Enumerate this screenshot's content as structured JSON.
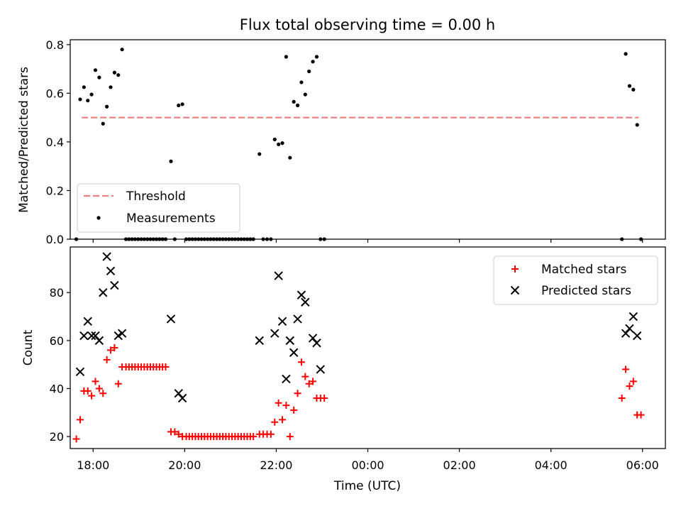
{
  "chart_data": [
    {
      "type": "scatter",
      "title": "Flux total observing time = 0.00 h",
      "xlabel": "",
      "ylabel": "Matched/Predicted stars",
      "xlim": [
        "17:30",
        "06:30"
      ],
      "ylim": [
        0,
        0.82
      ],
      "yticks": [
        0.0,
        0.2,
        0.4,
        0.6,
        0.8
      ],
      "yticklabels": [
        "0.0",
        "0.2",
        "0.4",
        "0.6",
        "0.8"
      ],
      "grid": false,
      "legend": "lower-left",
      "series": [
        {
          "name": "Threshold",
          "kind": "dashed-line",
          "color": "#f08080",
          "points": [
            [
              "17:45",
              0.5
            ],
            [
              "05:55",
              0.5
            ]
          ]
        },
        {
          "name": "Measurements",
          "kind": "dot",
          "color": "#000000",
          "points": [
            [
              "17:38",
              0.0
            ],
            [
              "17:43",
              0.575
            ],
            [
              "17:48",
              0.625
            ],
            [
              "17:53",
              0.57
            ],
            [
              "17:58",
              0.595
            ],
            [
              "18:03",
              0.695
            ],
            [
              "18:08",
              0.665
            ],
            [
              "18:13",
              0.475
            ],
            [
              "18:18",
              0.545
            ],
            [
              "18:23",
              0.625
            ],
            [
              "18:28",
              0.685
            ],
            [
              "18:33",
              0.675
            ],
            [
              "18:38",
              0.78
            ],
            [
              "18:43",
              0.0
            ],
            [
              "18:47",
              0.0
            ],
            [
              "18:51",
              0.0
            ],
            [
              "18:55",
              0.0
            ],
            [
              "18:59",
              0.0
            ],
            [
              "19:03",
              0.0
            ],
            [
              "19:07",
              0.0
            ],
            [
              "19:11",
              0.0
            ],
            [
              "19:15",
              0.0
            ],
            [
              "19:19",
              0.0
            ],
            [
              "19:23",
              0.0
            ],
            [
              "19:27",
              0.0
            ],
            [
              "19:31",
              0.0
            ],
            [
              "19:35",
              0.0
            ],
            [
              "19:42",
              0.32
            ],
            [
              "19:47",
              0.0
            ],
            [
              "19:52",
              0.55
            ],
            [
              "19:57",
              0.555
            ],
            [
              "20:02",
              0.0
            ],
            [
              "20:06",
              0.0
            ],
            [
              "20:10",
              0.0
            ],
            [
              "20:14",
              0.0
            ],
            [
              "20:18",
              0.0
            ],
            [
              "20:22",
              0.0
            ],
            [
              "20:26",
              0.0
            ],
            [
              "20:30",
              0.0
            ],
            [
              "20:34",
              0.0
            ],
            [
              "20:38",
              0.0
            ],
            [
              "20:42",
              0.0
            ],
            [
              "20:46",
              0.0
            ],
            [
              "20:50",
              0.0
            ],
            [
              "20:54",
              0.0
            ],
            [
              "20:58",
              0.0
            ],
            [
              "21:02",
              0.0
            ],
            [
              "21:06",
              0.0
            ],
            [
              "21:10",
              0.0
            ],
            [
              "21:14",
              0.0
            ],
            [
              "21:18",
              0.0
            ],
            [
              "21:22",
              0.0
            ],
            [
              "21:26",
              0.0
            ],
            [
              "21:30",
              0.0
            ],
            [
              "21:38",
              0.35
            ],
            [
              "21:43",
              0.0
            ],
            [
              "21:48",
              0.0
            ],
            [
              "21:53",
              0.0
            ],
            [
              "21:58",
              0.41
            ],
            [
              "22:03",
              0.39
            ],
            [
              "22:08",
              0.395
            ],
            [
              "22:13",
              0.75
            ],
            [
              "22:18",
              0.335
            ],
            [
              "22:23",
              0.565
            ],
            [
              "22:28",
              0.55
            ],
            [
              "22:33",
              0.645
            ],
            [
              "22:38",
              0.595
            ],
            [
              "22:43",
              0.69
            ],
            [
              "22:48",
              0.73
            ],
            [
              "22:53",
              0.75
            ],
            [
              "22:58",
              0.0
            ],
            [
              "23:03",
              0.0
            ],
            [
              "05:33",
              0.0
            ],
            [
              "05:38",
              0.762
            ],
            [
              "05:43",
              0.63
            ],
            [
              "05:48",
              0.615
            ],
            [
              "05:53",
              0.47
            ],
            [
              "05:58",
              0.0
            ]
          ]
        }
      ]
    },
    {
      "type": "scatter",
      "title": "",
      "xlabel": "Time (UTC)",
      "ylabel": "Count",
      "xlim": [
        "17:30",
        "06:30"
      ],
      "ylim": [
        15,
        99
      ],
      "yticks": [
        20,
        40,
        60,
        80
      ],
      "yticklabels": [
        "20",
        "40",
        "60",
        "80"
      ],
      "xticks": [
        "18:00",
        "20:00",
        "22:00",
        "00:00",
        "02:00",
        "04:00",
        "06:00"
      ],
      "xticklabels": [
        "18:00",
        "20:00",
        "22:00",
        "00:00",
        "02:00",
        "04:00",
        "06:00"
      ],
      "grid": false,
      "legend": "upper-right",
      "series": [
        {
          "name": "Matched stars",
          "kind": "plus",
          "color": "#ff0000",
          "points": [
            [
              "17:38",
              19
            ],
            [
              "17:43",
              27
            ],
            [
              "17:48",
              39
            ],
            [
              "17:53",
              39
            ],
            [
              "17:58",
              37
            ],
            [
              "18:03",
              43
            ],
            [
              "18:08",
              40
            ],
            [
              "18:13",
              38
            ],
            [
              "18:18",
              52
            ],
            [
              "18:23",
              56
            ],
            [
              "18:28",
              57
            ],
            [
              "18:33",
              42
            ],
            [
              "18:38",
              49
            ],
            [
              "18:43",
              49
            ],
            [
              "18:47",
              49
            ],
            [
              "18:51",
              49
            ],
            [
              "18:55",
              49
            ],
            [
              "18:59",
              49
            ],
            [
              "19:03",
              49
            ],
            [
              "19:07",
              49
            ],
            [
              "19:11",
              49
            ],
            [
              "19:15",
              49
            ],
            [
              "19:19",
              49
            ],
            [
              "19:23",
              49
            ],
            [
              "19:27",
              49
            ],
            [
              "19:31",
              49
            ],
            [
              "19:35",
              49
            ],
            [
              "19:42",
              22
            ],
            [
              "19:47",
              22
            ],
            [
              "19:52",
              21
            ],
            [
              "19:57",
              20
            ],
            [
              "20:02",
              20
            ],
            [
              "20:06",
              20
            ],
            [
              "20:10",
              20
            ],
            [
              "20:14",
              20
            ],
            [
              "20:18",
              20
            ],
            [
              "20:22",
              20
            ],
            [
              "20:26",
              20
            ],
            [
              "20:30",
              20
            ],
            [
              "20:34",
              20
            ],
            [
              "20:38",
              20
            ],
            [
              "20:42",
              20
            ],
            [
              "20:46",
              20
            ],
            [
              "20:50",
              20
            ],
            [
              "20:54",
              20
            ],
            [
              "20:58",
              20
            ],
            [
              "21:02",
              20
            ],
            [
              "21:06",
              20
            ],
            [
              "21:10",
              20
            ],
            [
              "21:14",
              20
            ],
            [
              "21:18",
              20
            ],
            [
              "21:22",
              20
            ],
            [
              "21:26",
              20
            ],
            [
              "21:30",
              20
            ],
            [
              "21:38",
              21
            ],
            [
              "21:43",
              21
            ],
            [
              "21:48",
              21
            ],
            [
              "21:53",
              21
            ],
            [
              "21:58",
              26
            ],
            [
              "22:03",
              34
            ],
            [
              "22:08",
              27
            ],
            [
              "22:13",
              33
            ],
            [
              "22:18",
              20
            ],
            [
              "22:23",
              31
            ],
            [
              "22:28",
              38
            ],
            [
              "22:33",
              51
            ],
            [
              "22:38",
              45
            ],
            [
              "22:43",
              42
            ],
            [
              "22:48",
              43
            ],
            [
              "22:53",
              36
            ],
            [
              "22:58",
              36
            ],
            [
              "23:03",
              36
            ],
            [
              "05:33",
              36
            ],
            [
              "05:38",
              48
            ],
            [
              "05:43",
              41
            ],
            [
              "05:48",
              43
            ],
            [
              "05:53",
              29
            ],
            [
              "05:58",
              29
            ]
          ]
        },
        {
          "name": "Predicted stars",
          "kind": "x",
          "color": "#000000",
          "points": [
            [
              "17:43",
              47
            ],
            [
              "17:48",
              62
            ],
            [
              "17:53",
              68
            ],
            [
              "17:58",
              62
            ],
            [
              "18:03",
              62
            ],
            [
              "18:08",
              60
            ],
            [
              "18:13",
              80
            ],
            [
              "18:18",
              95
            ],
            [
              "18:23",
              89
            ],
            [
              "18:28",
              83
            ],
            [
              "18:33",
              62
            ],
            [
              "18:38",
              63
            ],
            [
              "19:42",
              69
            ],
            [
              "19:52",
              38
            ],
            [
              "19:57",
              36
            ],
            [
              "21:38",
              60
            ],
            [
              "21:58",
              63
            ],
            [
              "22:03",
              87
            ],
            [
              "22:08",
              68
            ],
            [
              "22:13",
              44
            ],
            [
              "22:18",
              60
            ],
            [
              "22:23",
              55
            ],
            [
              "22:28",
              69
            ],
            [
              "22:33",
              79
            ],
            [
              "22:38",
              76
            ],
            [
              "22:48",
              61
            ],
            [
              "22:53",
              59
            ],
            [
              "22:58",
              48
            ],
            [
              "05:38",
              63
            ],
            [
              "05:43",
              65
            ],
            [
              "05:48",
              70
            ],
            [
              "05:53",
              62
            ]
          ]
        }
      ]
    }
  ]
}
